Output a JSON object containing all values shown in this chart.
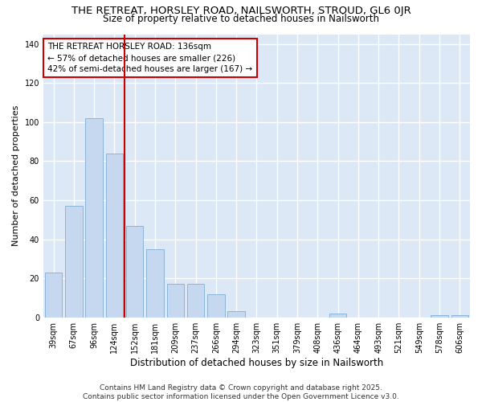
{
  "title": "THE RETREAT, HORSLEY ROAD, NAILSWORTH, STROUD, GL6 0JR",
  "subtitle": "Size of property relative to detached houses in Nailsworth",
  "xlabel": "Distribution of detached houses by size in Nailsworth",
  "ylabel": "Number of detached properties",
  "categories": [
    "39sqm",
    "67sqm",
    "96sqm",
    "124sqm",
    "152sqm",
    "181sqm",
    "209sqm",
    "237sqm",
    "266sqm",
    "294sqm",
    "323sqm",
    "351sqm",
    "379sqm",
    "408sqm",
    "436sqm",
    "464sqm",
    "493sqm",
    "521sqm",
    "549sqm",
    "578sqm",
    "606sqm"
  ],
  "values": [
    23,
    57,
    102,
    84,
    47,
    35,
    17,
    17,
    12,
    3,
    0,
    0,
    0,
    0,
    2,
    0,
    0,
    0,
    0,
    1,
    1
  ],
  "bar_color": "#c5d8f0",
  "bar_edge_color": "#8ab4d8",
  "vline_x_index": 3,
  "vline_color": "#cc0000",
  "annotation_line1": "THE RETREAT HORSLEY ROAD: 136sqm",
  "annotation_line2": "← 57% of detached houses are smaller (226)",
  "annotation_line3": "42% of semi-detached houses are larger (167) →",
  "annotation_box_color": "#cc0000",
  "ylim": [
    0,
    145
  ],
  "yticks": [
    0,
    20,
    40,
    60,
    80,
    100,
    120,
    140
  ],
  "plot_bg_color": "#dce8f5",
  "fig_bg_color": "#ffffff",
  "grid_color": "#ffffff",
  "footer_text": "Contains HM Land Registry data © Crown copyright and database right 2025.\nContains public sector information licensed under the Open Government Licence v3.0.",
  "title_fontsize": 9.5,
  "subtitle_fontsize": 8.5,
  "ylabel_fontsize": 8,
  "xlabel_fontsize": 8.5,
  "tick_fontsize": 7,
  "annotation_fontsize": 7.5,
  "footer_fontsize": 6.5
}
